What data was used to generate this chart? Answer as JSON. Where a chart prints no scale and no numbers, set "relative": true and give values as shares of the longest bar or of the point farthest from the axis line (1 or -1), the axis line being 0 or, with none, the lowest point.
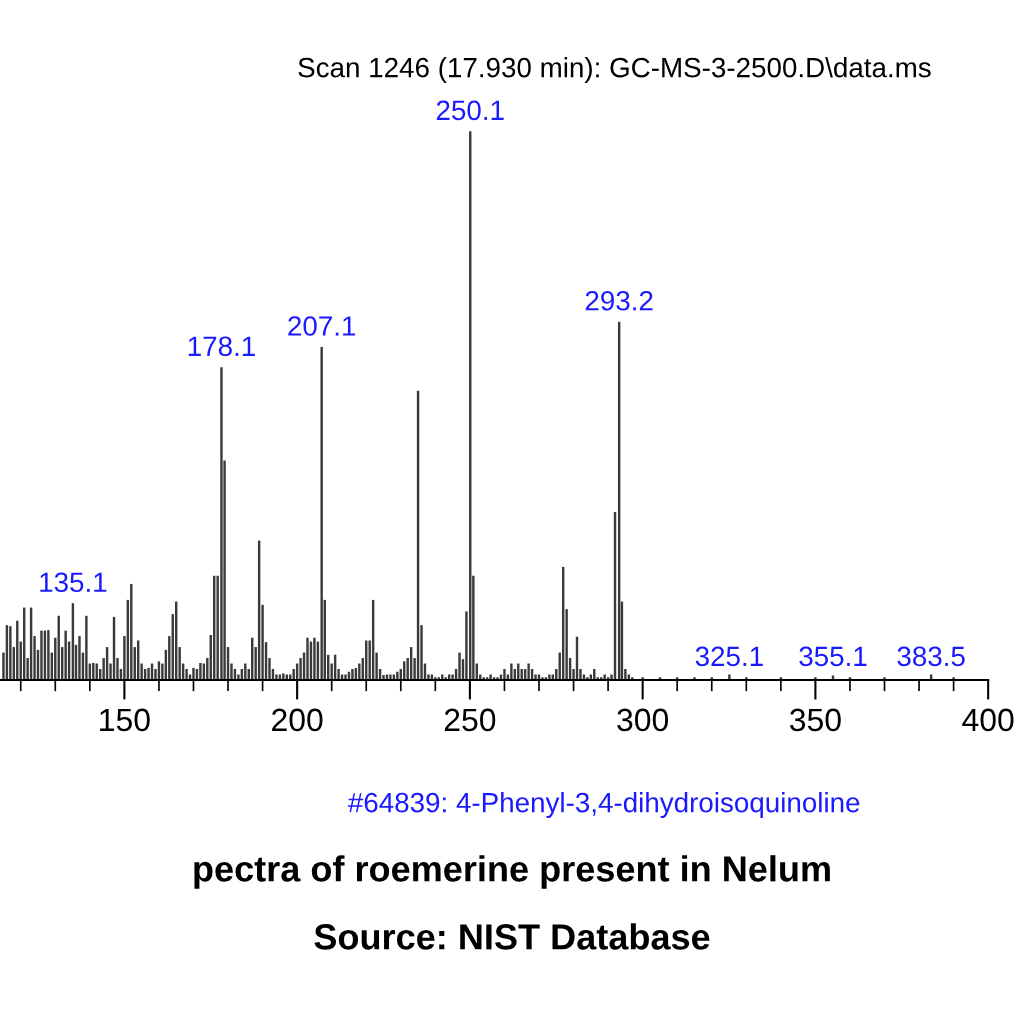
{
  "chart_data": {
    "type": "bar",
    "relative": true,
    "title": "Scan 1246 (17.930 min): GC-MS-3-2500.D\\data.ms",
    "x": [
      115,
      116,
      117,
      118,
      119,
      120,
      121,
      122,
      123,
      124,
      125,
      126,
      127,
      128,
      129,
      130,
      131,
      132,
      133,
      134,
      135.1,
      136,
      137,
      138,
      139,
      140,
      141,
      142,
      143,
      144,
      145,
      146,
      147,
      148,
      149,
      150,
      151,
      152,
      153,
      154,
      155,
      156,
      157,
      158,
      159,
      160,
      161,
      162,
      163,
      164,
      165,
      166,
      167,
      168,
      169,
      170,
      171,
      172,
      173,
      174,
      175,
      176,
      177,
      178.1,
      179,
      180,
      181,
      182,
      183,
      184,
      185,
      186,
      187,
      188,
      189,
      190,
      191,
      192,
      193,
      194,
      195,
      196,
      197,
      198,
      199,
      200,
      201,
      202,
      203,
      204,
      205,
      206,
      207.1,
      208,
      209,
      210,
      211,
      212,
      213,
      214,
      215,
      216,
      217,
      218,
      219,
      220,
      221,
      222,
      223,
      224,
      225,
      226,
      227,
      228,
      229,
      230,
      231,
      232,
      233,
      234,
      235,
      236,
      237,
      238,
      239,
      240,
      241,
      242,
      243,
      244,
      245,
      246,
      247,
      248,
      249,
      250.1,
      251,
      252,
      253,
      254,
      255,
      256,
      257,
      258,
      259,
      260,
      261,
      262,
      263,
      264,
      265,
      266,
      267,
      268,
      269,
      270,
      271,
      272,
      273,
      274,
      275,
      276,
      277,
      278,
      279,
      280,
      281,
      282,
      283,
      284,
      285,
      286,
      287,
      288,
      289,
      290,
      291,
      292,
      293.2,
      294,
      295,
      296,
      297,
      300,
      305,
      310,
      315,
      320,
      325.1,
      330,
      340,
      350,
      355.1,
      360,
      370,
      383.5,
      390
    ],
    "values": [
      0.05,
      0.1,
      0.098,
      0.06,
      0.108,
      0.07,
      0.132,
      0.04,
      0.132,
      0.08,
      0.055,
      0.09,
      0.09,
      0.091,
      0.05,
      0.077,
      0.117,
      0.06,
      0.09,
      0.07,
      0.14,
      0.064,
      0.08,
      0.05,
      0.117,
      0.03,
      0.031,
      0.03,
      0.02,
      0.04,
      0.06,
      0.03,
      0.115,
      0.04,
      0.02,
      0.08,
      0.146,
      0.175,
      0.06,
      0.072,
      0.03,
      0.02,
      0.022,
      0.03,
      0.02,
      0.034,
      0.03,
      0.055,
      0.08,
      0.12,
      0.143,
      0.06,
      0.03,
      0.02,
      0.01,
      0.022,
      0.02,
      0.031,
      0.03,
      0.04,
      0.082,
      0.19,
      0.19,
      0.57,
      0.4,
      0.06,
      0.03,
      0.02,
      0.01,
      0.02,
      0.03,
      0.02,
      0.077,
      0.06,
      0.254,
      0.137,
      0.069,
      0.04,
      0.02,
      0.01,
      0.01,
      0.012,
      0.01,
      0.01,
      0.02,
      0.03,
      0.04,
      0.05,
      0.077,
      0.07,
      0.077,
      0.07,
      0.607,
      0.146,
      0.046,
      0.03,
      0.046,
      0.02,
      0.01,
      0.01,
      0.015,
      0.02,
      0.022,
      0.03,
      0.04,
      0.072,
      0.072,
      0.146,
      0.05,
      0.02,
      0.009,
      0.01,
      0.01,
      0.01,
      0.015,
      0.02,
      0.034,
      0.04,
      0.06,
      0.04,
      0.527,
      0.1,
      0.03,
      0.01,
      0.01,
      0.005,
      0.005,
      0.01,
      0.005,
      0.01,
      0.01,
      0.02,
      0.05,
      0.038,
      0.125,
      1.0,
      0.19,
      0.03,
      0.01,
      0.005,
      0.005,
      0.01,
      0.005,
      0.005,
      0.01,
      0.02,
      0.01,
      0.03,
      0.02,
      0.03,
      0.02,
      0.02,
      0.03,
      0.02,
      0.01,
      0.01,
      0.005,
      0.005,
      0.01,
      0.01,
      0.02,
      0.05,
      0.206,
      0.129,
      0.04,
      0.02,
      0.079,
      0.02,
      0.01,
      0.005,
      0.01,
      0.02,
      0.005,
      0.005,
      0.01,
      0.005,
      0.01,
      0.306,
      0.653,
      0.143,
      0.02,
      0.01,
      0.005,
      0.005,
      0.005,
      0.005,
      0.005,
      0.005,
      0.01,
      0.005,
      0.005,
      0.005,
      0.008,
      0.005,
      0.005,
      0.01,
      0.005
    ],
    "color": "#3a3a3a",
    "xlim": [
      114,
      400
    ],
    "xticks": [
      {
        "value": 120,
        "label": null
      },
      {
        "value": 130,
        "label": null
      },
      {
        "value": 140,
        "label": null
      },
      150,
      {
        "value": 160,
        "label": null
      },
      {
        "value": 170,
        "label": null
      },
      {
        "value": 180,
        "label": null
      },
      {
        "value": 190,
        "label": null
      },
      200,
      {
        "value": 210,
        "label": null
      },
      {
        "value": 220,
        "label": null
      },
      {
        "value": 230,
        "label": null
      },
      {
        "value": 240,
        "label": null
      },
      250,
      {
        "value": 260,
        "label": null
      },
      {
        "value": 270,
        "label": null
      },
      {
        "value": 280,
        "label": null
      },
      {
        "value": 290,
        "label": null
      },
      300,
      {
        "value": 310,
        "label": null
      },
      {
        "value": 320,
        "label": null
      },
      {
        "value": 330,
        "label": null
      },
      {
        "value": 340,
        "label": null
      },
      350,
      {
        "value": 360,
        "label": null
      },
      {
        "value": 370,
        "label": null
      },
      {
        "value": 380,
        "label": null
      },
      {
        "value": 390,
        "label": null
      },
      400
    ],
    "grid": false,
    "annotations": [
      {
        "text": "135.1",
        "x": 135.1,
        "y": 0.14
      },
      {
        "text": "178.1",
        "x": 178.1,
        "y": 0.57
      },
      {
        "text": "207.1",
        "x": 207.1,
        "y": 0.607
      },
      {
        "text": "250.1",
        "x": 250.1,
        "y": 1.0
      },
      {
        "text": "293.2",
        "x": 293.2,
        "y": 0.653
      },
      {
        "text": "325.1",
        "x": 325.1,
        "y": 0.005
      },
      {
        "text": "355.1",
        "x": 355.1,
        "y": 0.005
      },
      {
        "text": "383.5",
        "x": 383.5,
        "y": 0.005
      },
      "#64839: 4-Phenyl-3,4-dihydroisoquinoline",
      "pectra of roemerine present in Nelum",
      "Source: NIST Database"
    ]
  }
}
